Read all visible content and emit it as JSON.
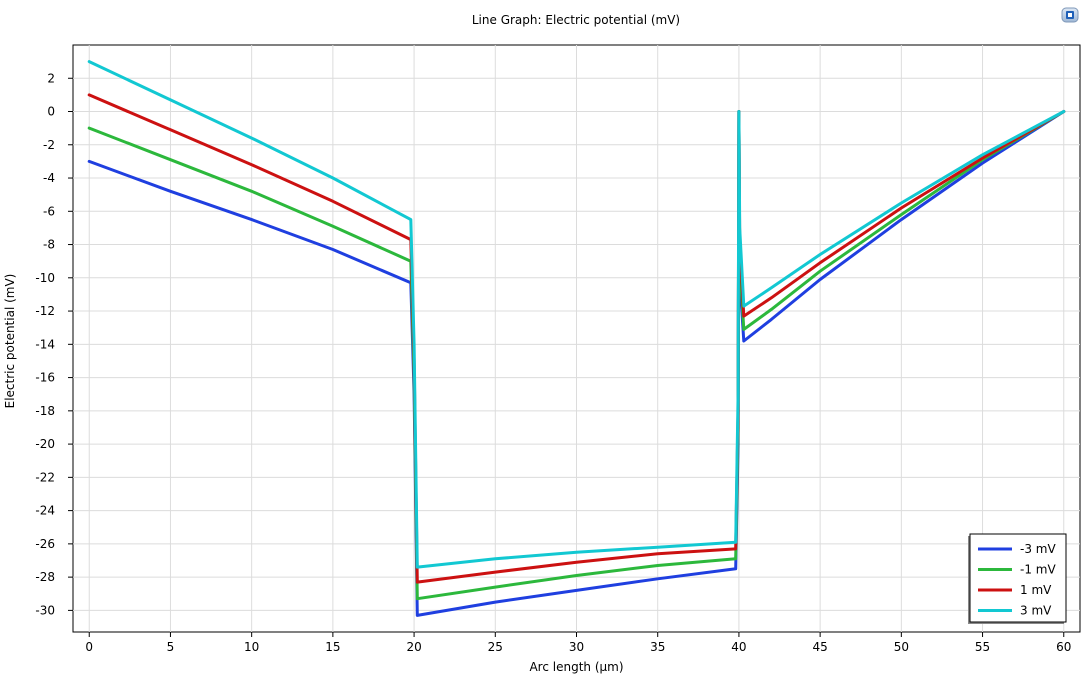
{
  "title": "Line Graph: Electric potential (mV)",
  "toolbar": {
    "graphics_icon": "graphics-window-icon"
  },
  "chart_data": {
    "type": "line",
    "title": "Line Graph: Electric potential (mV)",
    "xlabel": "Arc length (µm)",
    "ylabel": "Electric potential (mV)",
    "xlim": [
      -1,
      61
    ],
    "ylim": [
      -31.3,
      4
    ],
    "xticks": [
      0,
      5,
      10,
      15,
      20,
      25,
      30,
      35,
      40,
      45,
      50,
      55,
      60
    ],
    "yticks": [
      2,
      0,
      -2,
      -4,
      -6,
      -8,
      -10,
      -12,
      -14,
      -16,
      -18,
      -20,
      -22,
      -24,
      -26,
      -28,
      -30
    ],
    "grid": true,
    "legend_position": "bottom-right",
    "series": [
      {
        "name": "-3 mV",
        "color": "#1f3fe0",
        "x": [
          0,
          5,
          10,
          15,
          19.8,
          20.0,
          20.2,
          25,
          30,
          35,
          39.8,
          39.95,
          40.0,
          40.05,
          40.3,
          42,
          45,
          50,
          55,
          60
        ],
        "y": [
          -3,
          -4.8,
          -6.5,
          -8.3,
          -10.3,
          -17,
          -30.3,
          -29.5,
          -28.8,
          -28.1,
          -27.5,
          -20,
          0,
          -10,
          -13.8,
          -12.5,
          -10.1,
          -6.5,
          -3.1,
          0
        ]
      },
      {
        "name": "-1 mV",
        "color": "#2cb83c",
        "x": [
          0,
          5,
          10,
          15,
          19.8,
          20.0,
          20.2,
          25,
          30,
          35,
          39.8,
          39.95,
          40.0,
          40.05,
          40.3,
          42,
          45,
          50,
          55,
          60
        ],
        "y": [
          -1,
          -2.9,
          -4.8,
          -6.9,
          -9.0,
          -16,
          -29.3,
          -28.6,
          -27.9,
          -27.3,
          -26.9,
          -19,
          0,
          -9,
          -13.1,
          -11.9,
          -9.6,
          -6.2,
          -2.9,
          0
        ]
      },
      {
        "name": "1 mV",
        "color": "#cc1111",
        "x": [
          0,
          5,
          10,
          15,
          19.8,
          20.0,
          20.2,
          25,
          30,
          35,
          39.8,
          39.95,
          40.0,
          40.05,
          40.3,
          42,
          45,
          50,
          55,
          60
        ],
        "y": [
          1,
          -1.1,
          -3.2,
          -5.4,
          -7.7,
          -15,
          -28.3,
          -27.7,
          -27.1,
          -26.6,
          -26.3,
          -18,
          0,
          -8,
          -12.3,
          -11.2,
          -9.1,
          -5.8,
          -2.8,
          0
        ]
      },
      {
        "name": "3 mV",
        "color": "#12c8d2",
        "x": [
          0,
          5,
          10,
          15,
          19.8,
          20.0,
          20.2,
          25,
          30,
          35,
          39.8,
          39.95,
          40.0,
          40.05,
          40.3,
          42,
          45,
          50,
          55,
          60
        ],
        "y": [
          3,
          0.7,
          -1.6,
          -4.0,
          -6.5,
          -14,
          -27.4,
          -26.9,
          -26.5,
          -26.2,
          -25.9,
          -17,
          0,
          -7,
          -11.7,
          -10.6,
          -8.6,
          -5.5,
          -2.6,
          0
        ]
      }
    ]
  }
}
